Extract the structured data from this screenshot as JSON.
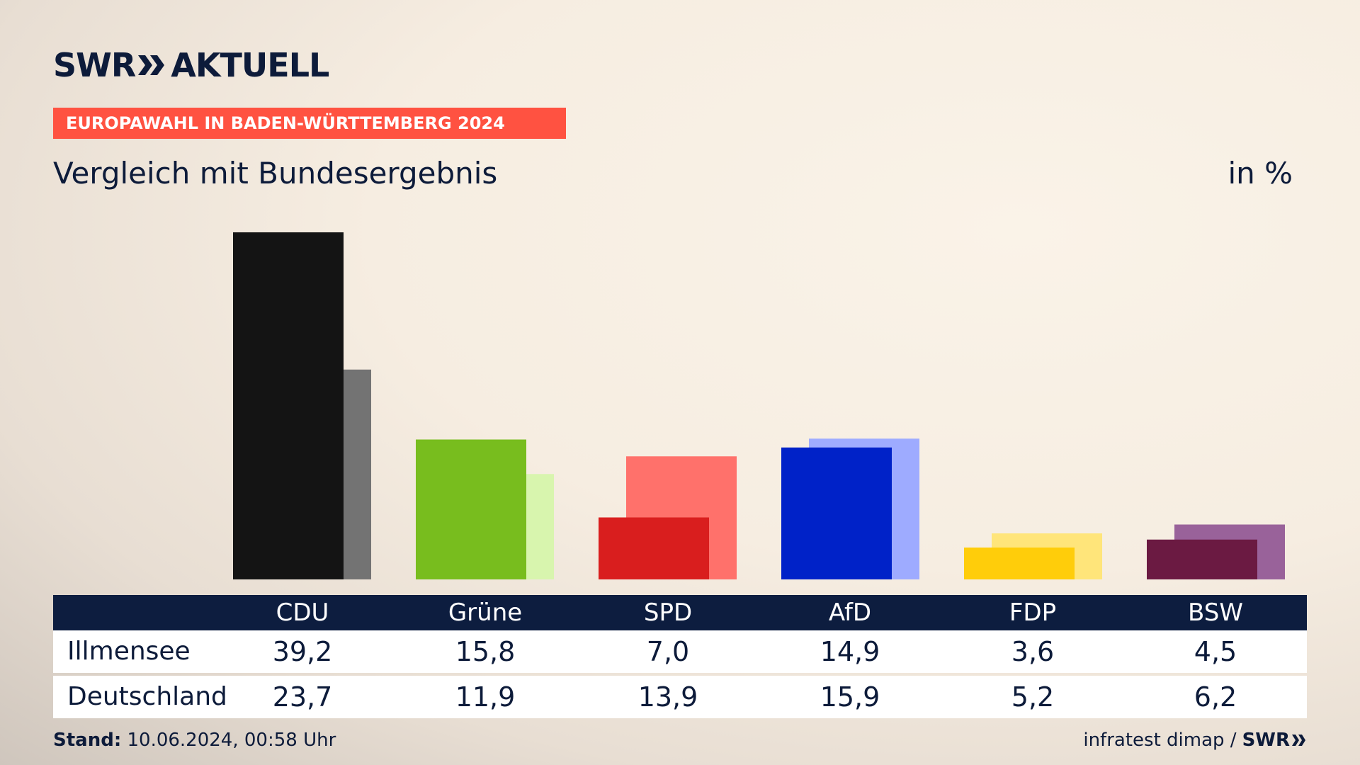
{
  "header": {
    "brand_left": "SWR",
    "brand_right": "AKTUELL",
    "kicker": "EUROPAWAHL IN BADEN-WÜRTTEMBERG 2024",
    "subtitle": "Vergleich mit Bundesergebnis",
    "unit": "in %"
  },
  "chart_data": {
    "type": "bar",
    "categories": [
      "CDU",
      "Grüne",
      "SPD",
      "AfD",
      "FDP",
      "BSW"
    ],
    "series": [
      {
        "name": "Illmensee",
        "values": [
          39.2,
          15.8,
          7.0,
          14.9,
          3.6,
          4.5
        ],
        "colors": [
          "#141414",
          "#78bd1e",
          "#d91e1e",
          "#0022c8",
          "#ffcd0a",
          "#6b1a42"
        ]
      },
      {
        "name": "Deutschland",
        "values": [
          23.7,
          11.9,
          13.9,
          15.9,
          5.2,
          6.2
        ],
        "colors": [
          "#737373",
          "#d8f5ae",
          "#ff716b",
          "#9eabff",
          "#ffe57a",
          "#99629a"
        ]
      }
    ],
    "ylim": [
      0,
      40
    ],
    "grid": false,
    "legend": "table-below"
  },
  "table": {
    "headers": [
      "CDU",
      "Grüne",
      "SPD",
      "AfD",
      "FDP",
      "BSW"
    ],
    "rows": [
      {
        "label": "Illmensee",
        "values": [
          "39,2",
          "15,8",
          "7,0",
          "14,9",
          "3,6",
          "4,5"
        ]
      },
      {
        "label": "Deutschland",
        "values": [
          "23,7",
          "11,9",
          "13,9",
          "15,9",
          "5,2",
          "6,2"
        ]
      }
    ]
  },
  "footer": {
    "stand_label": "Stand:",
    "stand_value": "10.06.2024, 00:58 Uhr",
    "source": "infratest dimap /",
    "brand": "SWR"
  }
}
